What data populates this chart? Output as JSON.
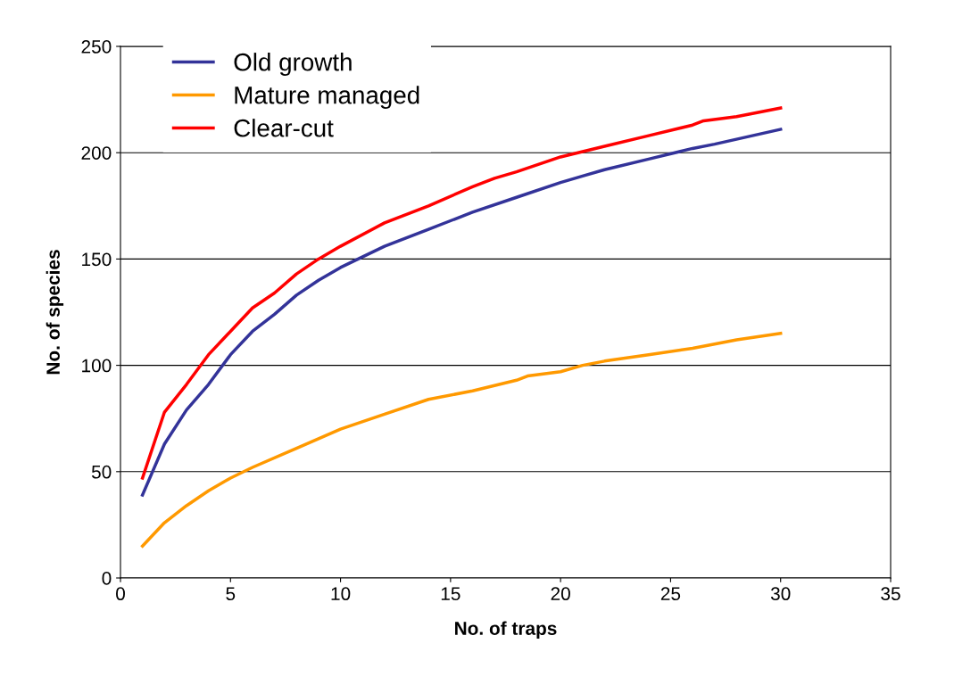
{
  "chart_data": {
    "type": "line",
    "xlabel": "No. of traps",
    "ylabel": "No. of species",
    "xlim": [
      0,
      35
    ],
    "xticks": [
      0,
      5,
      10,
      15,
      20,
      25,
      30,
      35
    ],
    "ylim": [
      0,
      250
    ],
    "yticks": [
      0,
      50,
      100,
      150,
      200,
      250
    ],
    "grid": "y",
    "legend": "top left",
    "marker": "none",
    "line_style": "solid",
    "series": [
      {
        "name": "Old growth",
        "color": "#333399",
        "x": [
          1,
          2,
          3,
          4,
          5,
          6,
          7,
          8,
          9,
          10,
          12,
          14,
          16,
          18,
          20,
          21,
          22,
          24,
          26,
          27,
          30
        ],
        "values": [
          39,
          63,
          79,
          91,
          105,
          116,
          124,
          133,
          140,
          146,
          156,
          164,
          172,
          179,
          186,
          189,
          192,
          197,
          202,
          204,
          211
        ]
      },
      {
        "name": "Mature managed",
        "color": "#ff9900",
        "x": [
          1,
          2,
          3,
          4,
          5,
          6,
          8,
          10,
          12,
          14,
          16,
          18,
          18.5,
          20,
          21,
          22,
          24,
          26,
          28,
          30
        ],
        "values": [
          15,
          26,
          34,
          41,
          47,
          52,
          61,
          70,
          77,
          84,
          88,
          93,
          95,
          97,
          100,
          102,
          105,
          108,
          112,
          115
        ]
      },
      {
        "name": "Clear-cut",
        "color": "#ff0000",
        "x": [
          1,
          2,
          3,
          4,
          5,
          6,
          7,
          8,
          9,
          10,
          12,
          14,
          16,
          17,
          18,
          20,
          22,
          24,
          26,
          26.5,
          28,
          30
        ],
        "values": [
          47,
          78,
          91,
          105,
          116,
          127,
          134,
          143,
          150,
          156,
          167,
          175,
          184,
          188,
          191,
          198,
          203,
          208,
          213,
          215,
          217,
          221
        ]
      }
    ]
  }
}
